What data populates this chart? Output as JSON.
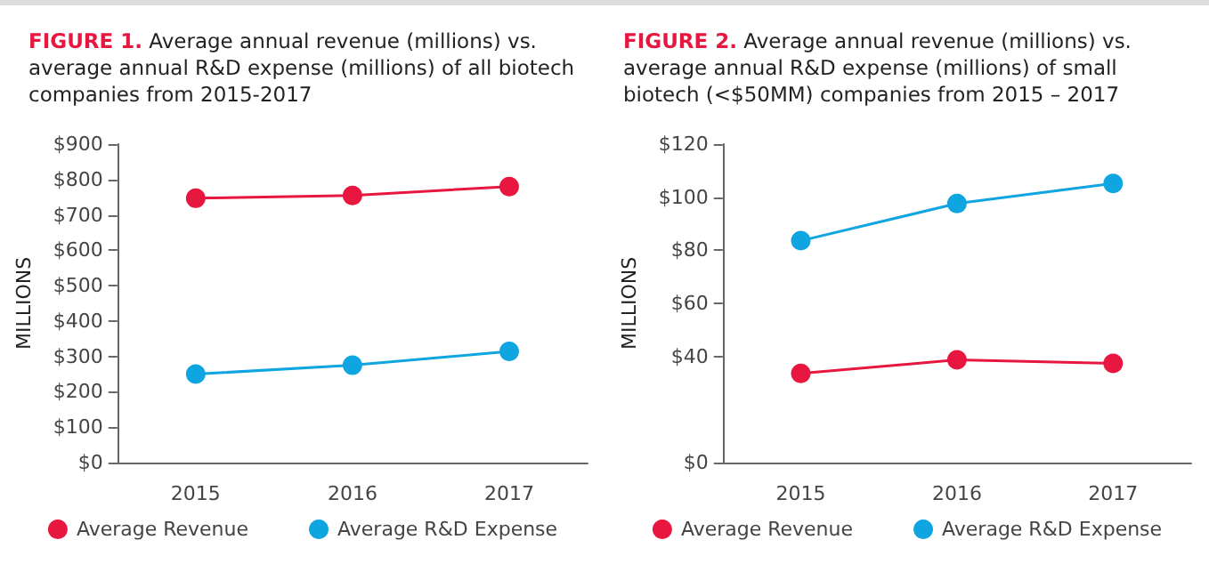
{
  "chart_data": [
    {
      "type": "line",
      "title": "FIGURE 1.  Average annual revenue (millions) vs. average annual R&D expense (millions) of all biotech companies from 2015-2017",
      "ylabel": "MILLIONS",
      "categories": [
        "2015",
        "2016",
        "2017"
      ],
      "series": [
        {
          "name": "Average Revenue",
          "color": "#e8173f",
          "values": [
            747,
            755,
            780
          ]
        },
        {
          "name": "Average R&D Expense",
          "color": "#0ea5e0",
          "values": [
            250,
            275,
            314
          ]
        }
      ],
      "ylim": [
        0,
        900
      ],
      "yticks": [
        {
          "value": 0,
          "label": "$0"
        },
        {
          "value": 100,
          "label": "$100"
        },
        {
          "value": 200,
          "label": "$200"
        },
        {
          "value": 300,
          "label": "$300"
        },
        {
          "value": 400,
          "label": "$400"
        },
        {
          "value": 500,
          "label": "$500"
        },
        {
          "value": 600,
          "label": "$600"
        },
        {
          "value": 700,
          "label": "$700"
        },
        {
          "value": 800,
          "label": "$800"
        },
        {
          "value": 900,
          "label": "$900"
        }
      ],
      "legend": "bottom",
      "marker": "circle",
      "line_style": "solid"
    },
    {
      "type": "line",
      "title": "FIGURE 2.  Average annual revenue (millions) vs. average annual R&D expense (millions) of small biotech (<$50MM) companies from 2015 – 2017",
      "ylabel": "MILLIONS",
      "categories": [
        "2015",
        "2016",
        "2017"
      ],
      "series": [
        {
          "name": "Average Revenue",
          "color": "#e8173f",
          "values": [
            33.6,
            38.7,
            37.4
          ]
        },
        {
          "name": "Average R&D Expense",
          "color": "#0ea5e0",
          "values": [
            83.6,
            97.6,
            105.2
          ]
        }
      ],
      "ylim": [
        0,
        120
      ],
      "yticks": [
        {
          "value": 0,
          "label": "$0"
        },
        {
          "value": 40,
          "label": "$40"
        },
        {
          "value": 60,
          "label": "$60"
        },
        {
          "value": 80,
          "label": "$80"
        },
        {
          "value": 100,
          "label": "$100"
        },
        {
          "value": 120,
          "label": "$120"
        }
      ],
      "legend": "bottom",
      "marker": "circle",
      "line_style": "solid"
    }
  ]
}
